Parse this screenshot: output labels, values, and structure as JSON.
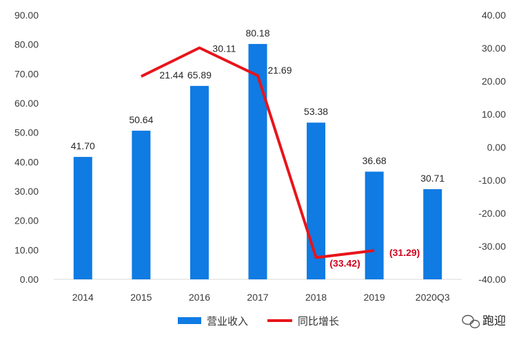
{
  "chart_data": {
    "type": "bar",
    "title": "",
    "categories": [
      "2014",
      "2015",
      "2016",
      "2017",
      "2018",
      "2019",
      "2020Q3"
    ],
    "series": [
      {
        "name": "营业收入",
        "type": "bar",
        "axis": "left",
        "color": "#0f7be3",
        "values": [
          41.7,
          50.64,
          65.89,
          80.18,
          53.38,
          36.68,
          30.71
        ],
        "labels": [
          "41.70",
          "50.64",
          "65.89",
          "80.18",
          "53.38",
          "36.68",
          "30.71"
        ]
      },
      {
        "name": "同比增长",
        "type": "line",
        "axis": "right",
        "color": "#e8141b",
        "values": [
          null,
          21.44,
          30.11,
          21.69,
          -33.42,
          -31.29,
          null
        ],
        "labels": [
          "",
          "21.44",
          "30.11",
          "21.69",
          "(33.42)",
          "(31.29)",
          ""
        ]
      }
    ],
    "y_left": {
      "range": [
        0,
        90
      ],
      "ticks": [
        "0.00",
        "10.00",
        "20.00",
        "30.00",
        "40.00",
        "50.00",
        "60.00",
        "70.00",
        "80.00",
        "90.00"
      ]
    },
    "y_right": {
      "range": [
        -40,
        40
      ],
      "ticks": [
        "-40.00",
        "-30.00",
        "-20.00",
        "-10.00",
        "0.00",
        "10.00",
        "20.00",
        "30.00",
        "40.00"
      ]
    },
    "grid": false,
    "legend": "bottom"
  },
  "watermark": {
    "text": "跑迎"
  }
}
